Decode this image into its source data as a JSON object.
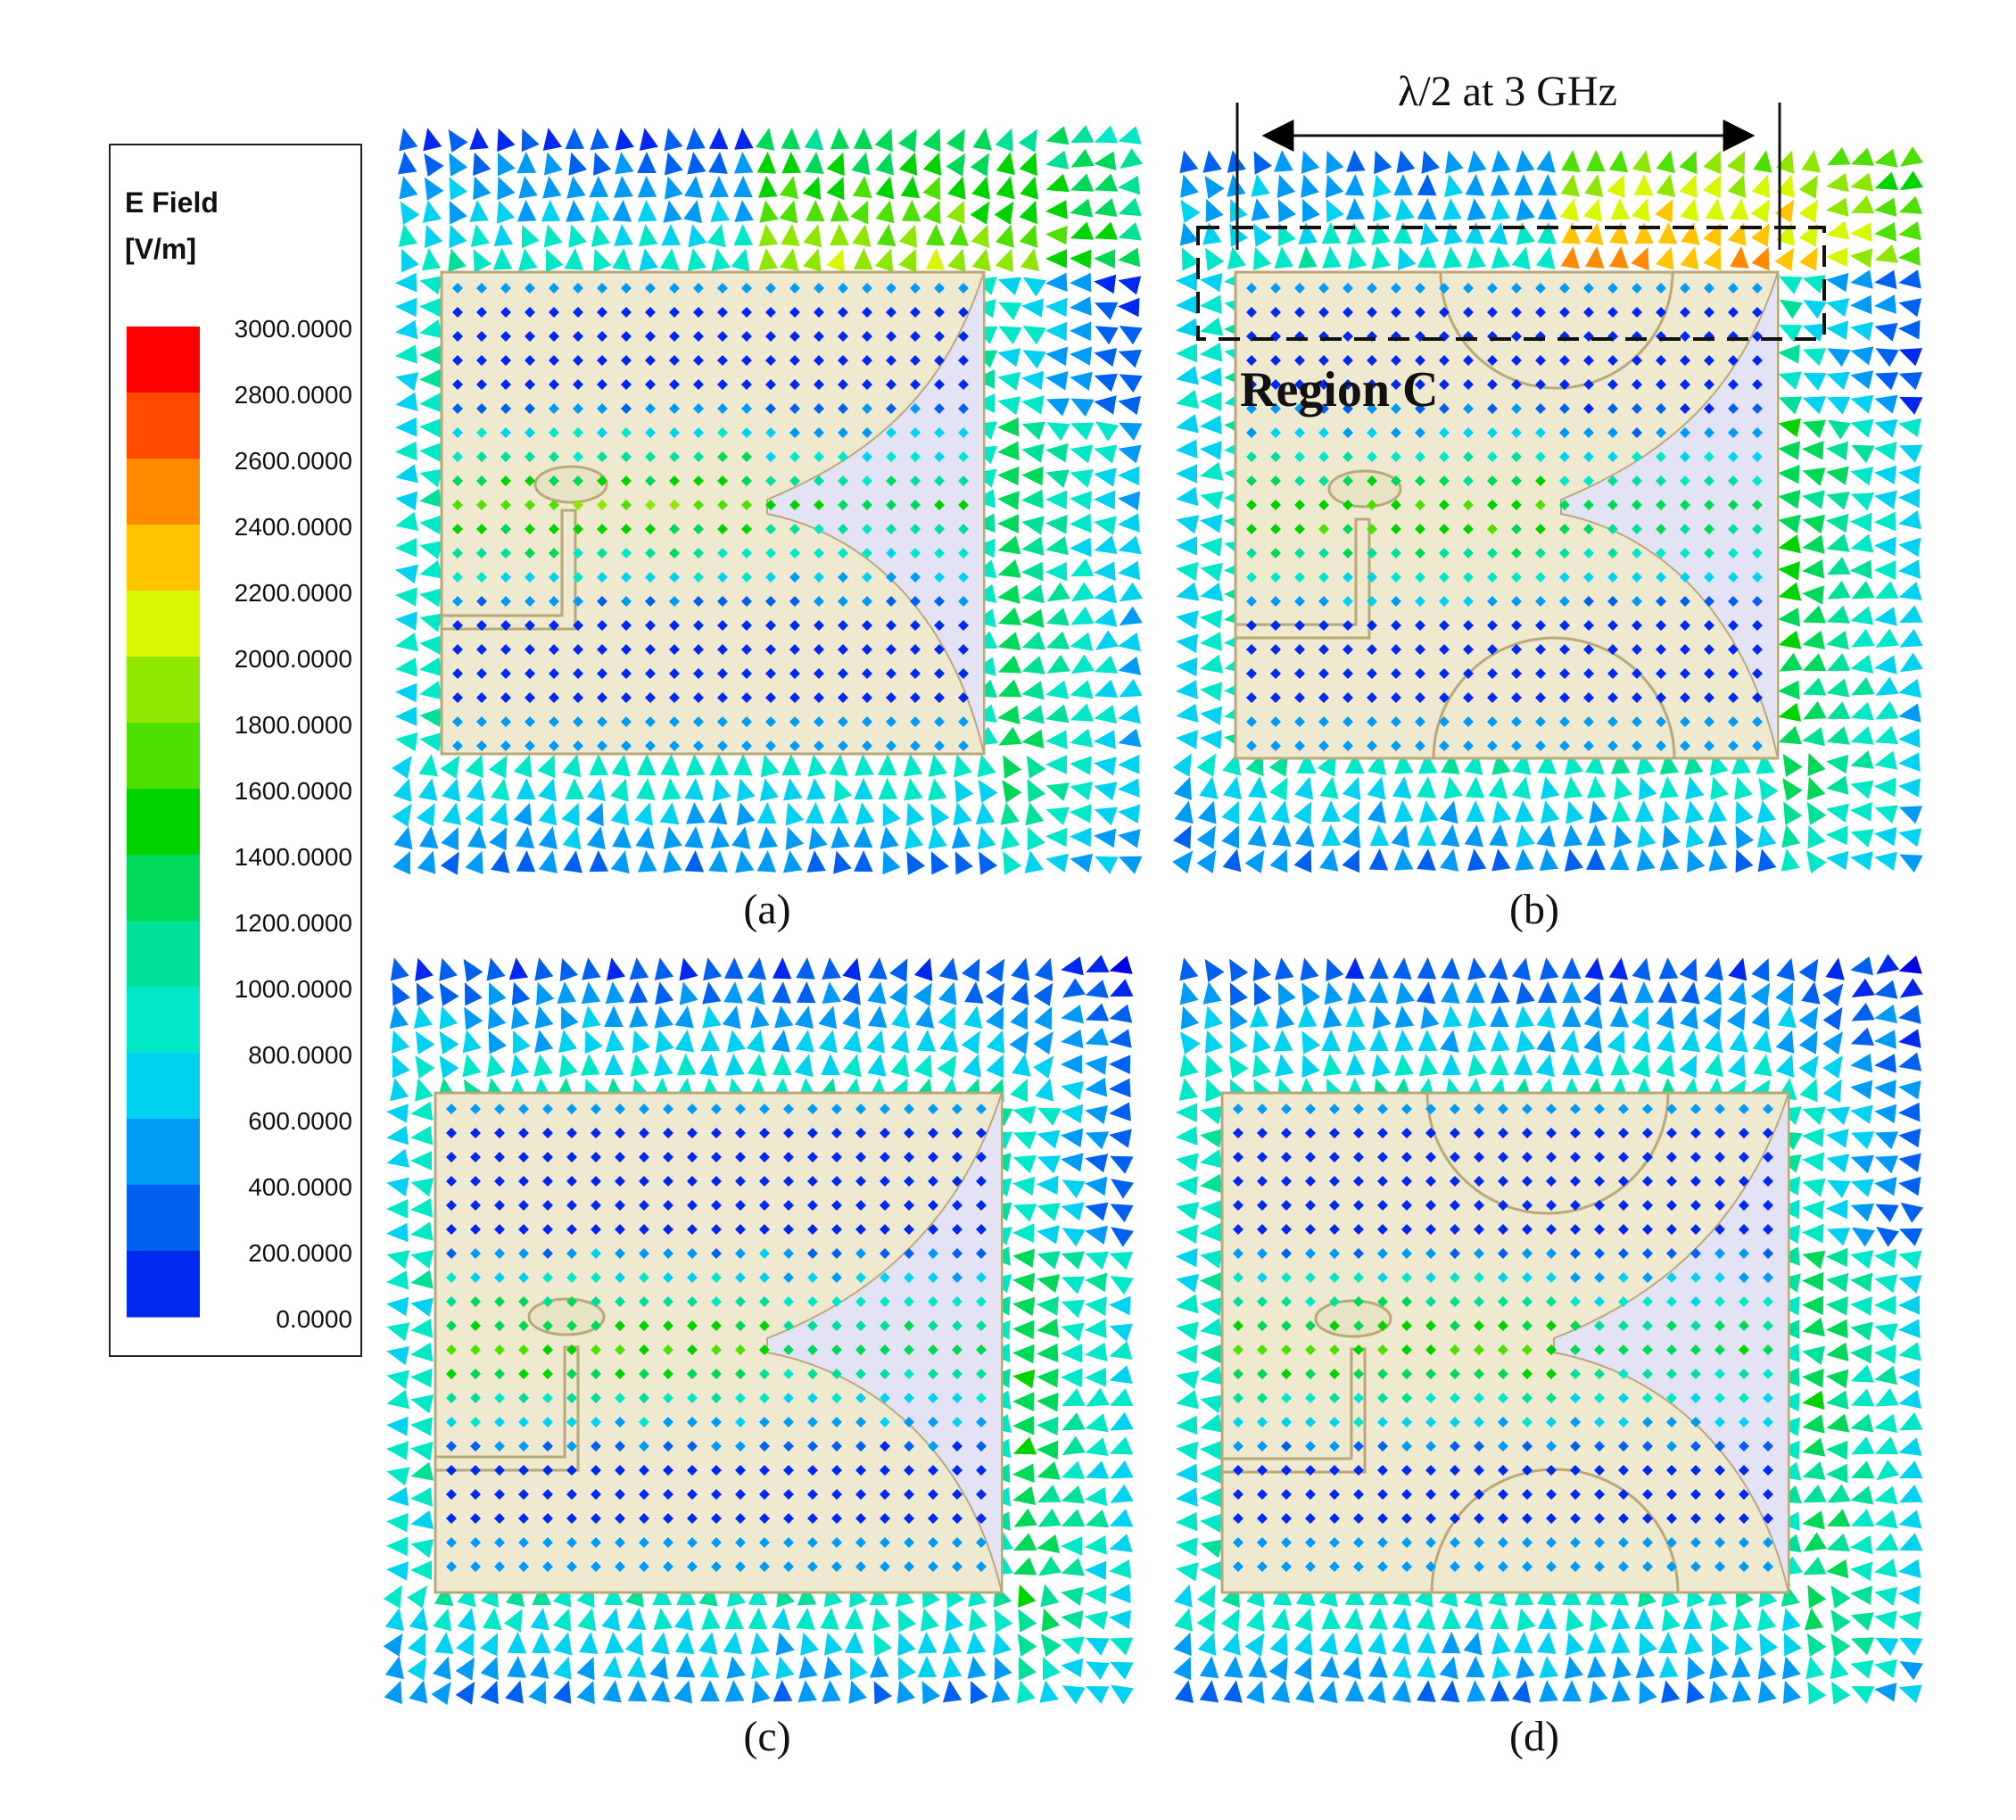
{
  "legend": {
    "title_line1": "E Field",
    "title_line2": "[V/m]",
    "ticks": [
      "3000.0000",
      "2800.0000",
      "2600.0000",
      "2400.0000",
      "2200.0000",
      "2000.0000",
      "1800.0000",
      "1600.0000",
      "1400.0000",
      "1200.0000",
      "1000.0000",
      "800.0000",
      "600.0000",
      "400.0000",
      "200.0000",
      "0.0000"
    ],
    "colors": [
      "#ff0000",
      "#ff4a00",
      "#ff8a00",
      "#ffc400",
      "#d9f700",
      "#8fe600",
      "#4ee000",
      "#00d400",
      "#00d85a",
      "#00e098",
      "#00e8c8",
      "#00d2f0",
      "#009bf5",
      "#0060f0",
      "#0028ee",
      "#0000e8"
    ]
  },
  "panels": [
    {
      "label": "(a)"
    },
    {
      "label": "(b)"
    },
    {
      "label": "(c)"
    },
    {
      "label": "(d)"
    }
  ],
  "annotations": {
    "dimension_label": "λ/2 at 3 GHz",
    "region_label": "Region C"
  },
  "style": {
    "substrate_fill": "#efe9cf",
    "substrate_edge": "#b9a87a",
    "slot_fill": "#e4e2f5"
  }
}
